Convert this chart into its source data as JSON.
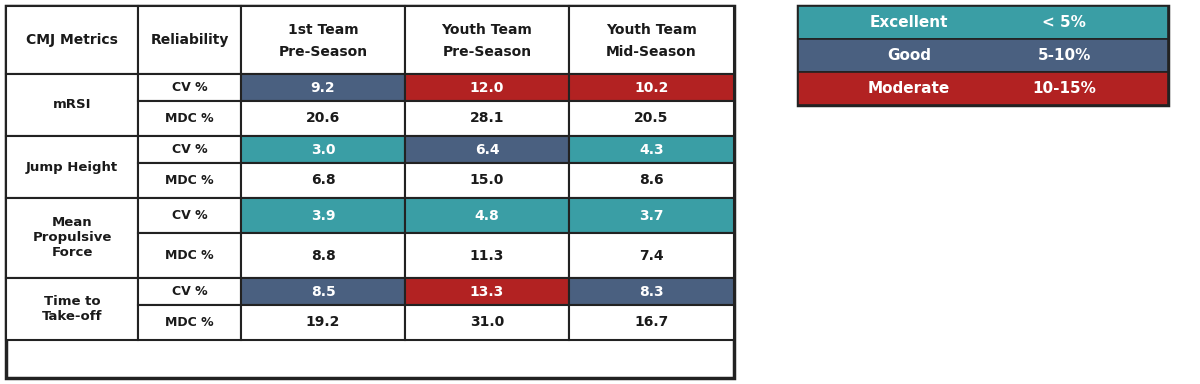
{
  "metrics": [
    "mRSI",
    "Jump Height",
    "Mean\nPropulsive\nForce",
    "Time to\nTake-off"
  ],
  "columns_line1": [
    "1st Team",
    "Youth Team",
    "Youth Team"
  ],
  "columns_line2": [
    "Pre-Season",
    "Pre-Season",
    "Mid-Season"
  ],
  "cv_values": [
    [
      9.2,
      12.0,
      10.2
    ],
    [
      3.0,
      6.4,
      4.3
    ],
    [
      3.9,
      4.8,
      3.7
    ],
    [
      8.5,
      13.3,
      8.3
    ]
  ],
  "mdc_values": [
    [
      20.6,
      28.1,
      20.5
    ],
    [
      6.8,
      15.0,
      8.6
    ],
    [
      8.8,
      11.3,
      7.4
    ],
    [
      19.2,
      31.0,
      16.7
    ]
  ],
  "cv_colors": [
    [
      "#4a6080",
      "#b22222",
      "#b22222"
    ],
    [
      "#3a9ea5",
      "#4a6080",
      "#3a9ea5"
    ],
    [
      "#3a9ea5",
      "#3a9ea5",
      "#3a9ea5"
    ],
    [
      "#4a6080",
      "#b22222",
      "#4a6080"
    ]
  ],
  "legend_labels": [
    "Excellent",
    "Good",
    "Moderate"
  ],
  "legend_ranges": [
    "< 5%",
    "5-10%",
    "10-15%"
  ],
  "legend_colors": [
    "#3a9ea5",
    "#4a6080",
    "#b22222"
  ],
  "border_color": "#222222",
  "text_dark": "#1a1a1a",
  "text_white": "#ffffff"
}
